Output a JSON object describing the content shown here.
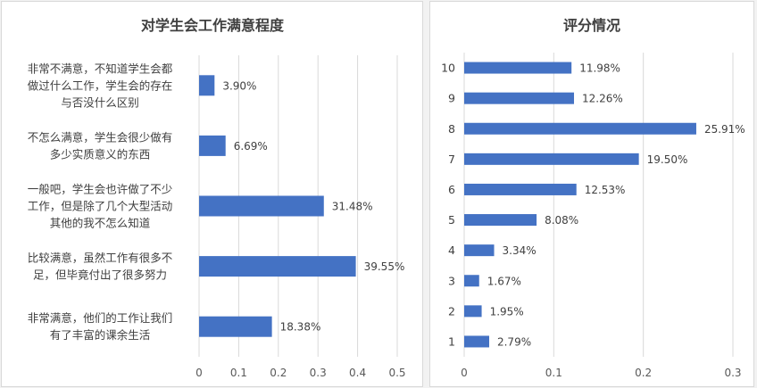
{
  "chart_data": [
    {
      "type": "bar",
      "orientation": "horizontal",
      "title": "对学生会工作满意程度",
      "categories": [
        [
          "非常不满意，不知道学生会都",
          "做过什么工作，学生会的存在",
          "与否没什么区别"
        ],
        [
          "不怎么满意，学生会很少做有",
          "多少实质意义的东西"
        ],
        [
          "一般吧，学生会也许做了不少",
          "工作，但是除了几个大型活动",
          "其他的我不怎么知道"
        ],
        [
          "比较满意，虽然工作有很多不",
          "足，但毕竟付出了很多努力"
        ],
        [
          "非常满意，他们的工作让我们",
          "有了丰富的课余生活"
        ]
      ],
      "values": [
        0.039,
        0.0669,
        0.3148,
        0.3955,
        0.1838
      ],
      "data_labels": [
        "3.90%",
        "6.69%",
        "31.48%",
        "39.55%",
        "18.38%"
      ],
      "xlim": [
        0,
        0.5
      ],
      "xticks": [
        "0",
        "0.1",
        "0.2",
        "0.3",
        "0.4",
        "0.5"
      ],
      "grid": true,
      "bar_color": "#4472c4"
    },
    {
      "type": "bar",
      "orientation": "horizontal",
      "title": "评分情况",
      "categories": [
        "10",
        "9",
        "8",
        "7",
        "6",
        "5",
        "4",
        "3",
        "2",
        "1"
      ],
      "values": [
        0.1198,
        0.1226,
        0.2591,
        0.195,
        0.1253,
        0.0808,
        0.0334,
        0.0167,
        0.0195,
        0.0279
      ],
      "data_labels": [
        "11.98%",
        "12.26%",
        "25.91%",
        "19.50%",
        "12.53%",
        "8.08%",
        "3.34%",
        "1.67%",
        "1.95%",
        "2.79%"
      ],
      "xlim": [
        0,
        0.3
      ],
      "xticks": [
        "0",
        "0.1",
        "0.2",
        "0.3"
      ],
      "grid": true,
      "bar_color": "#4472c4"
    }
  ]
}
